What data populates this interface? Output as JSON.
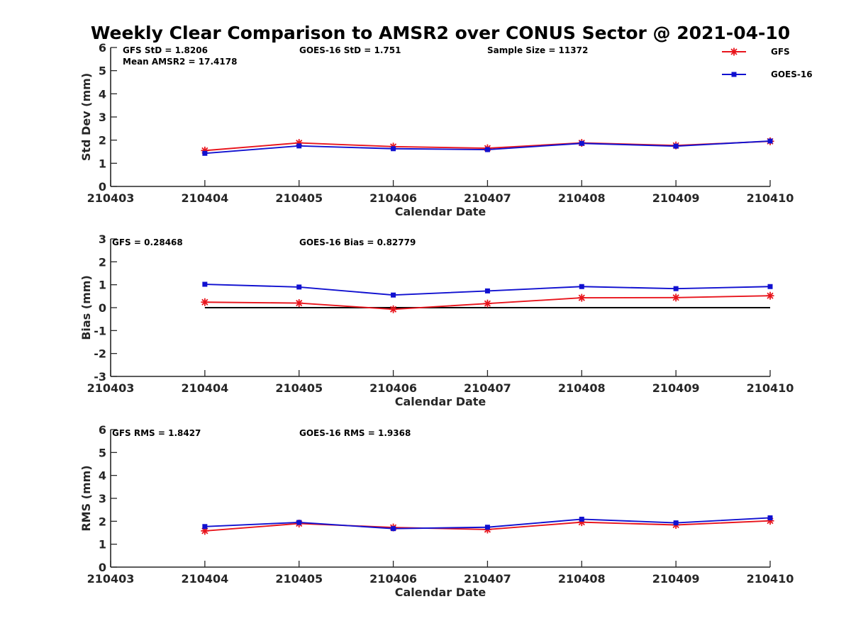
{
  "title": "Weekly Clear Comparison to AMSR2 over CONUS Sector @ 2021-04-10",
  "legend": {
    "placement": "top-right",
    "entries": [
      {
        "name": "GFS",
        "color": "#e8141c",
        "marker": "asterisk"
      },
      {
        "name": "GOES-16",
        "color": "#1010d0",
        "marker": "square"
      }
    ]
  },
  "chart_data": [
    {
      "type": "line",
      "panel": "std",
      "xlabel": "Calendar Date",
      "ylabel": "Std Dev (mm)",
      "x_tick_labels": [
        "210403",
        "210404",
        "210405",
        "210406",
        "210407",
        "210408",
        "210409",
        "210410"
      ],
      "xlim": [
        0,
        7
      ],
      "ylim": [
        0,
        6
      ],
      "y_ticks": [
        0,
        1,
        2,
        3,
        4,
        5,
        6
      ],
      "annotations": [
        {
          "text": "GFS StD = 1.8206"
        },
        {
          "text": "GOES-16 StD = 1.751"
        },
        {
          "text": "Sample Size = 11372"
        },
        {
          "text": "Mean AMSR2 = 17.4178"
        }
      ],
      "series": [
        {
          "name": "GFS",
          "color": "#e8141c",
          "marker": "asterisk",
          "x": [
            "210404",
            "210405",
            "210406",
            "210407",
            "210408",
            "210409",
            "210410"
          ],
          "values": [
            1.55,
            1.88,
            1.72,
            1.65,
            1.88,
            1.77,
            1.95
          ]
        },
        {
          "name": "GOES-16",
          "color": "#1010d0",
          "marker": "square",
          "x": [
            "210404",
            "210405",
            "210406",
            "210407",
            "210408",
            "210409",
            "210410"
          ],
          "values": [
            1.43,
            1.75,
            1.63,
            1.59,
            1.86,
            1.74,
            1.96
          ]
        }
      ]
    },
    {
      "type": "line",
      "panel": "bias",
      "xlabel": "Calendar Date",
      "ylabel": "Bias (mm)",
      "x_tick_labels": [
        "210403",
        "210404",
        "210405",
        "210406",
        "210407",
        "210408",
        "210409",
        "210410"
      ],
      "xlim": [
        0,
        7
      ],
      "ylim": [
        -3,
        3
      ],
      "y_ticks": [
        -3,
        -2,
        -1,
        0,
        1,
        2,
        3
      ],
      "zero_line": true,
      "annotations": [
        {
          "text": "GFS = 0.28468"
        },
        {
          "text": "GOES-16 Bias  = 0.82779"
        }
      ],
      "series": [
        {
          "name": "GFS",
          "color": "#e8141c",
          "marker": "asterisk",
          "x": [
            "210404",
            "210405",
            "210406",
            "210407",
            "210408",
            "210409",
            "210410"
          ],
          "values": [
            0.24,
            0.2,
            -0.07,
            0.18,
            0.43,
            0.44,
            0.52
          ]
        },
        {
          "name": "GOES-16",
          "color": "#1010d0",
          "marker": "square",
          "x": [
            "210404",
            "210405",
            "210406",
            "210407",
            "210408",
            "210409",
            "210410"
          ],
          "values": [
            1.02,
            0.9,
            0.55,
            0.73,
            0.92,
            0.83,
            0.92
          ]
        }
      ]
    },
    {
      "type": "line",
      "panel": "rms",
      "xlabel": "Calendar Date",
      "ylabel": "RMS (mm)",
      "x_tick_labels": [
        "210403",
        "210404",
        "210405",
        "210406",
        "210407",
        "210408",
        "210409",
        "210410"
      ],
      "xlim": [
        0,
        7
      ],
      "ylim": [
        0,
        6
      ],
      "y_ticks": [
        0,
        1,
        2,
        3,
        4,
        5,
        6
      ],
      "annotations": [
        {
          "text": "GFS RMS = 1.8427"
        },
        {
          "text": "GOES-16 RMS = 1.9368"
        }
      ],
      "series": [
        {
          "name": "GFS",
          "color": "#e8141c",
          "marker": "asterisk",
          "x": [
            "210404",
            "210405",
            "210406",
            "210407",
            "210408",
            "210409",
            "210410"
          ],
          "values": [
            1.58,
            1.9,
            1.73,
            1.64,
            1.96,
            1.84,
            2.02
          ]
        },
        {
          "name": "GOES-16",
          "color": "#1010d0",
          "marker": "square",
          "x": [
            "210404",
            "210405",
            "210406",
            "210407",
            "210408",
            "210409",
            "210410"
          ],
          "values": [
            1.77,
            1.95,
            1.68,
            1.74,
            2.09,
            1.93,
            2.15
          ]
        }
      ]
    }
  ]
}
